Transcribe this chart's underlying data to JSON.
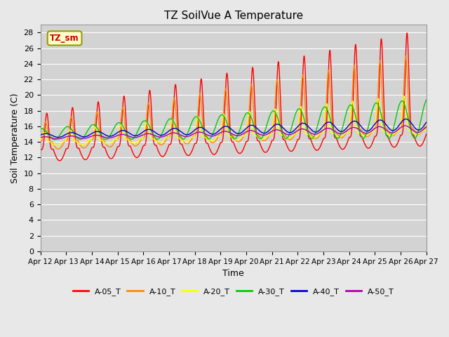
{
  "title": "TZ SoilVue A Temperature",
  "xlabel": "Time",
  "ylabel": "Soil Temperature (C)",
  "ylim": [
    0,
    29
  ],
  "yticks": [
    0,
    2,
    4,
    6,
    8,
    10,
    12,
    14,
    16,
    18,
    20,
    22,
    24,
    26,
    28
  ],
  "background_color": "#e8e8e8",
  "plot_bg_color": "#d3d3d3",
  "grid_color": "#ffffff",
  "series": {
    "A-05_T": {
      "color": "#ff0000",
      "linewidth": 1.0
    },
    "A-10_T": {
      "color": "#ff8800",
      "linewidth": 1.0
    },
    "A-20_T": {
      "color": "#ffff00",
      "linewidth": 1.0
    },
    "A-30_T": {
      "color": "#00cc00",
      "linewidth": 1.0
    },
    "A-40_T": {
      "color": "#0000cc",
      "linewidth": 1.0
    },
    "A-50_T": {
      "color": "#aa00aa",
      "linewidth": 1.0
    }
  },
  "xtick_labels": [
    "Apr 12",
    "Apr 13",
    "Apr 14",
    "Apr 15",
    "Apr 16",
    "Apr 17",
    "Apr 18",
    "Apr 19",
    "Apr 20",
    "Apr 21",
    "Apr 22",
    "Apr 23",
    "Apr 24",
    "Apr 25",
    "Apr 26",
    "Apr 27"
  ],
  "annotation_text": "TZ_sm",
  "annotation_color": "#cc0000",
  "annotation_bg": "#ffffcc",
  "annotation_border": "#999900"
}
